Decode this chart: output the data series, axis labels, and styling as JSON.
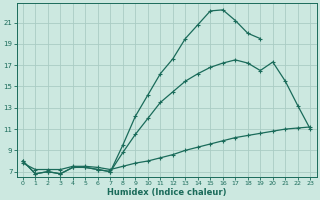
{
  "xlabel": "Humidex (Indice chaleur)",
  "bg_color": "#cce8e0",
  "grid_color": "#aaccC4",
  "line_color": "#1a6b5a",
  "xlim": [
    -0.5,
    23.5
  ],
  "ylim": [
    6.5,
    22.8
  ],
  "yticks": [
    7,
    9,
    11,
    13,
    15,
    17,
    19,
    21
  ],
  "xticks": [
    0,
    1,
    2,
    3,
    4,
    5,
    6,
    7,
    8,
    9,
    10,
    11,
    12,
    13,
    14,
    15,
    16,
    17,
    18,
    19,
    20,
    21,
    22,
    23
  ],
  "curve_top": {
    "x": [
      0,
      1,
      2,
      3,
      4,
      5,
      6,
      7,
      8,
      9,
      10,
      11,
      12,
      13,
      14,
      15,
      16,
      17,
      18,
      19
    ],
    "y": [
      8.0,
      6.8,
      7.0,
      6.8,
      7.4,
      7.4,
      7.2,
      7.0,
      9.5,
      12.2,
      14.2,
      16.2,
      17.6,
      19.5,
      20.8,
      22.1,
      22.2,
      21.2,
      20.0,
      19.5
    ]
  },
  "curve_mid": {
    "x": [
      0,
      1,
      2,
      3,
      4,
      5,
      6,
      7,
      8,
      9,
      10,
      11,
      12,
      13,
      14,
      15,
      16,
      17,
      18,
      19,
      20,
      21,
      22,
      23
    ],
    "y": [
      8.0,
      6.8,
      7.0,
      6.8,
      7.4,
      7.4,
      7.2,
      7.0,
      8.8,
      10.5,
      12.0,
      13.5,
      14.5,
      15.5,
      16.2,
      16.8,
      17.2,
      17.5,
      17.2,
      16.5,
      17.3,
      15.5,
      13.2,
      11.0
    ]
  },
  "curve_bot": {
    "x": [
      0,
      1,
      2,
      3,
      4,
      5,
      6,
      7,
      8,
      9,
      10,
      11,
      12,
      13,
      14,
      15,
      16,
      17,
      18,
      19,
      20,
      21,
      22,
      23
    ],
    "y": [
      7.8,
      7.2,
      7.2,
      7.2,
      7.5,
      7.5,
      7.4,
      7.2,
      7.5,
      7.8,
      8.0,
      8.3,
      8.6,
      9.0,
      9.3,
      9.6,
      9.9,
      10.2,
      10.4,
      10.6,
      10.8,
      11.0,
      11.1,
      11.2
    ]
  }
}
